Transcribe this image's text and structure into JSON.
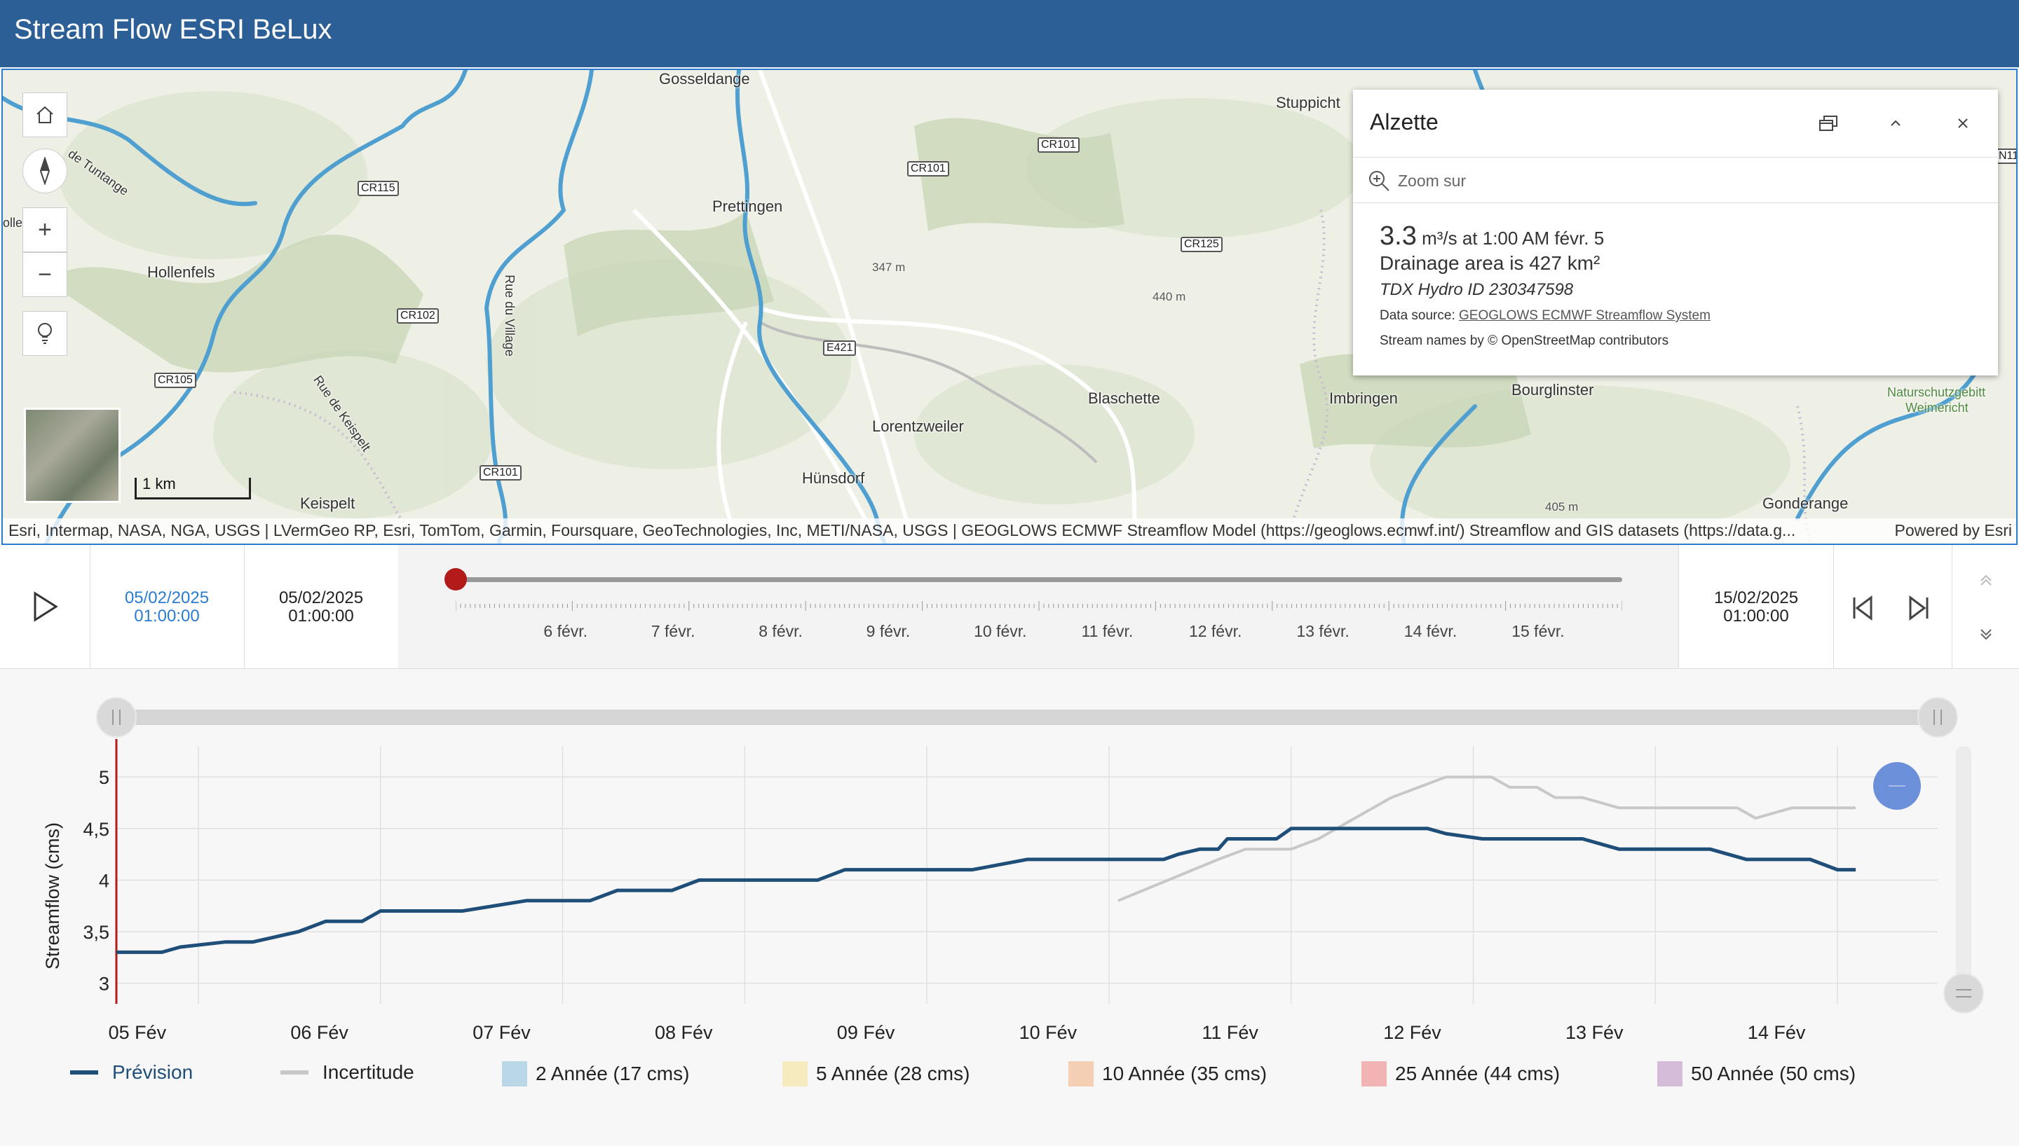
{
  "app": {
    "title": "Stream Flow ESRI BeLux"
  },
  "map": {
    "places": [
      "Gosseldange",
      "Stuppicht",
      "Prettingen",
      "Hollenfels",
      "Blaschette",
      "Imbringen",
      "Bourglinster",
      "Lorentzweiler",
      "Hünsdorf",
      "Keispelt",
      "Gonderange",
      "de Tuntange",
      "Rue de Keispelt",
      "Rue du Village",
      "Naturschutzgebitt",
      "Weimericht",
      "olle"
    ],
    "roads": [
      "CR115",
      "CR101",
      "CR101",
      "CR125",
      "CR102",
      "E421",
      "CR105",
      "CR101",
      "N11"
    ],
    "elevations": [
      "347 m",
      "440 m",
      "405 m"
    ],
    "scale_label": "1 km",
    "attribution": "Esri, Intermap, NASA, NGA, USGS | LVermGeo RP, Esri, TomTom, Garmin, Foursquare, GeoTechnologies, Inc, METI/NASA, USGS | GEOGLOWS ECMWF Streamflow Model (https://geoglows.ecmwf.int/) Streamflow and GIS datasets (https://data.g...",
    "powered_by": "Powered by Esri",
    "controls": [
      "home-icon",
      "compass-icon",
      "zoom-in-icon",
      "zoom-out-icon",
      "bulb-icon"
    ],
    "colors": {
      "river": "#4f9fd0",
      "header": "#2b5f96",
      "accent": "#2b7cd1"
    }
  },
  "popup": {
    "title": "Alzette",
    "zoom_label": "Zoom sur",
    "flow_value": "3.3",
    "flow_unit": "m³/s at 1:00 AM févr. 5",
    "drainage": "Drainage area is 427 km²",
    "tdx": "TDX Hydro ID 230347598",
    "source_prefix": "Data source: ",
    "source_link": "GEOGLOWS ECMWF Streamflow System",
    "osm": "Stream names by © OpenStreetMap contributors"
  },
  "timeslider": {
    "start_date": "05/02/2025",
    "start_time": "01:00:00",
    "current_date": "05/02/2025",
    "current_time": "01:00:00",
    "end_date": "15/02/2025",
    "end_time": "01:00:00",
    "ticks": [
      "6 févr.",
      "7 févr.",
      "8 févr.",
      "9 févr.",
      "10 févr.",
      "11 févr.",
      "12 févr.",
      "13 févr.",
      "14 févr.",
      "15 févr."
    ],
    "position": 0.0
  },
  "chart_data": {
    "type": "line",
    "ylabel": "Streamflow (cms)",
    "ylim": [
      2.8,
      5.3
    ],
    "yticks": [
      "5",
      "4,5",
      "4",
      "3,5",
      "3"
    ],
    "xticks": [
      "05 Fév",
      "06 Fév",
      "07 Fév",
      "08 Fév",
      "09 Fév",
      "10 Fév",
      "11 Fév",
      "12 Fév",
      "13 Fév",
      "14 Fév"
    ],
    "x_range_days": [
      4.55,
      14.55
    ],
    "series": [
      {
        "name": "Prévision",
        "color": "#1f4e79",
        "x": [
          4.55,
          4.8,
          4.9,
          5.15,
          5.3,
          5.55,
          5.7,
          5.9,
          6.0,
          6.3,
          6.45,
          6.8,
          6.95,
          7.15,
          7.3,
          7.6,
          7.75,
          8.05,
          8.2,
          8.4,
          8.55,
          8.8,
          8.95,
          9.1,
          9.25,
          9.55,
          9.7,
          10.15,
          10.3,
          10.38,
          10.5,
          10.6,
          10.65,
          10.92,
          11.0,
          11.3,
          11.4,
          11.75,
          11.85,
          12.05,
          12.15,
          12.45,
          12.6,
          12.8,
          12.9,
          13.15,
          13.3,
          13.5,
          13.6,
          13.85,
          14.0,
          14.1
        ],
        "y": [
          3.3,
          3.3,
          3.35,
          3.4,
          3.4,
          3.5,
          3.6,
          3.6,
          3.7,
          3.7,
          3.7,
          3.8,
          3.8,
          3.8,
          3.9,
          3.9,
          4.0,
          4.0,
          4.0,
          4.0,
          4.1,
          4.1,
          4.1,
          4.1,
          4.1,
          4.2,
          4.2,
          4.2,
          4.2,
          4.25,
          4.3,
          4.3,
          4.4,
          4.4,
          4.5,
          4.5,
          4.5,
          4.5,
          4.45,
          4.4,
          4.4,
          4.4,
          4.4,
          4.3,
          4.3,
          4.3,
          4.3,
          4.2,
          4.2,
          4.2,
          4.1,
          4.1
        ]
      },
      {
        "name": "Incertitude",
        "color": "#c8c8c8",
        "x": [
          10.05,
          10.6,
          10.75,
          11.0,
          11.15,
          11.55,
          11.7,
          11.85,
          11.95,
          12.1,
          12.2,
          12.35,
          12.45,
          12.6,
          12.8,
          13.1,
          13.3,
          13.45,
          13.55,
          13.75,
          14.0,
          14.1
        ],
        "y": [
          3.8,
          4.2,
          4.3,
          4.3,
          4.4,
          4.8,
          4.9,
          5.0,
          5.0,
          5.0,
          4.9,
          4.9,
          4.8,
          4.8,
          4.7,
          4.7,
          4.7,
          4.7,
          4.6,
          4.7,
          4.7,
          4.7
        ]
      }
    ],
    "legend": [
      {
        "label": "Prévision",
        "kind": "line",
        "color": "#1f4e79"
      },
      {
        "label": "Incertitude",
        "kind": "line",
        "color": "#c8c8c8"
      },
      {
        "label": "2 Année (17 cms)",
        "kind": "box",
        "color": "#b9d7e6"
      },
      {
        "label": "5 Année (28 cms)",
        "kind": "box",
        "color": "#f6ebbe"
      },
      {
        "label": "10 Année (35 cms)",
        "kind": "box",
        "color": "#f5cfb3"
      },
      {
        "label": "25 Année (44 cms)",
        "kind": "box",
        "color": "#f1b3b3"
      },
      {
        "label": "50 Année (50 cms)",
        "kind": "box",
        "color": "#d5bcd8"
      }
    ]
  }
}
